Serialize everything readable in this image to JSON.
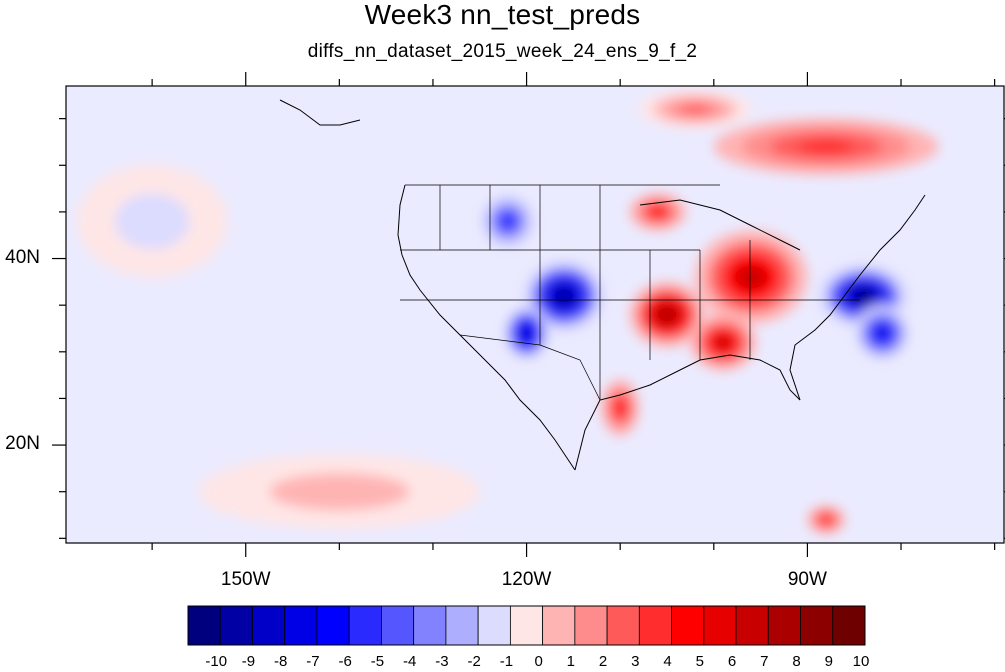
{
  "title": "Week3 nn_test_preds",
  "subtitle": "diffs_nn_dataset_2015_week_24_ens_9_f_2",
  "axes": {
    "lon_range": [
      -169.2,
      -69
    ],
    "lat_range": [
      9.5,
      58.5
    ],
    "lon_ticks": [
      {
        "value": -150,
        "label": "150W"
      },
      {
        "value": -120,
        "label": "120W"
      },
      {
        "value": -90,
        "label": "90W"
      }
    ],
    "lat_ticks": [
      {
        "value": 40,
        "label": "40N"
      },
      {
        "value": 20,
        "label": "20N"
      }
    ]
  },
  "colorbar": {
    "levels": [
      "-10",
      "-9",
      "-8",
      "-7",
      "-6",
      "-5",
      "-4",
      "-3",
      "-2",
      "-1",
      "0",
      "1",
      "2",
      "3",
      "4",
      "5",
      "6",
      "7",
      "8",
      "9",
      "10"
    ],
    "colors": [
      "#00007e",
      "#0000a4",
      "#0000c8",
      "#0000e6",
      "#0000ff",
      "#2a2aff",
      "#5656ff",
      "#8282ff",
      "#aeaeff",
      "#dcdcff",
      "#ffe6e6",
      "#ffb4b4",
      "#ff8c8c",
      "#ff5a5a",
      "#ff2d2d",
      "#ff0000",
      "#e60000",
      "#c80000",
      "#aa0000",
      "#8c0000",
      "#6e0000"
    ]
  },
  "chart_data": {
    "type": "heatmap",
    "title": "Week3 nn_test_preds",
    "subtitle": "diffs_nn_dataset_2015_week_24_ens_9_f_2",
    "xlabel": "",
    "ylabel": "",
    "units": "",
    "xlim": [
      -169.2,
      -69
    ],
    "ylim": [
      9.5,
      58.5
    ],
    "color_levels": [
      -10,
      -9,
      -8,
      -7,
      -6,
      -5,
      -4,
      -3,
      -2,
      -1,
      0,
      1,
      2,
      3,
      4,
      5,
      6,
      7,
      8,
      9,
      10
    ],
    "background_value": -0.5,
    "anomalies": [
      {
        "lon": -116,
        "lat": 36,
        "value": -9,
        "rlon": 4.5,
        "rlat": 4
      },
      {
        "lon": -120,
        "lat": 32,
        "value": -8,
        "rlon": 2.5,
        "rlat": 3
      },
      {
        "lon": -122,
        "lat": 44,
        "value": -5,
        "rlon": 3,
        "rlat": 3
      },
      {
        "lon": -84,
        "lat": 36,
        "value": -10,
        "rlon": 5,
        "rlat": 3.5
      },
      {
        "lon": -82,
        "lat": 32,
        "value": -7,
        "rlon": 3,
        "rlat": 3
      },
      {
        "lon": -96,
        "lat": 38,
        "value": 7,
        "rlon": 6,
        "rlat": 5
      },
      {
        "lon": -105,
        "lat": 34,
        "value": 8,
        "rlon": 4,
        "rlat": 3.5
      },
      {
        "lon": -99,
        "lat": 31,
        "value": 7,
        "rlon": 3.5,
        "rlat": 3
      },
      {
        "lon": -106,
        "lat": 45,
        "value": 5,
        "rlon": 3,
        "rlat": 2
      },
      {
        "lon": -110,
        "lat": 24,
        "value": 5,
        "rlon": 2,
        "rlat": 3
      },
      {
        "lon": -88,
        "lat": 52,
        "value": 4,
        "rlon": 12,
        "rlat": 3
      },
      {
        "lon": -102,
        "lat": 56,
        "value": 3,
        "rlon": 6,
        "rlat": 2
      },
      {
        "lon": -88,
        "lat": 12,
        "value": 5,
        "rlon": 2,
        "rlat": 1.5
      },
      {
        "lon": -160,
        "lat": 44,
        "value": -1,
        "rlon": 8,
        "rlat": 6
      },
      {
        "lon": -140,
        "lat": 15,
        "value": 1,
        "rlon": 15,
        "rlat": 4
      }
    ]
  }
}
